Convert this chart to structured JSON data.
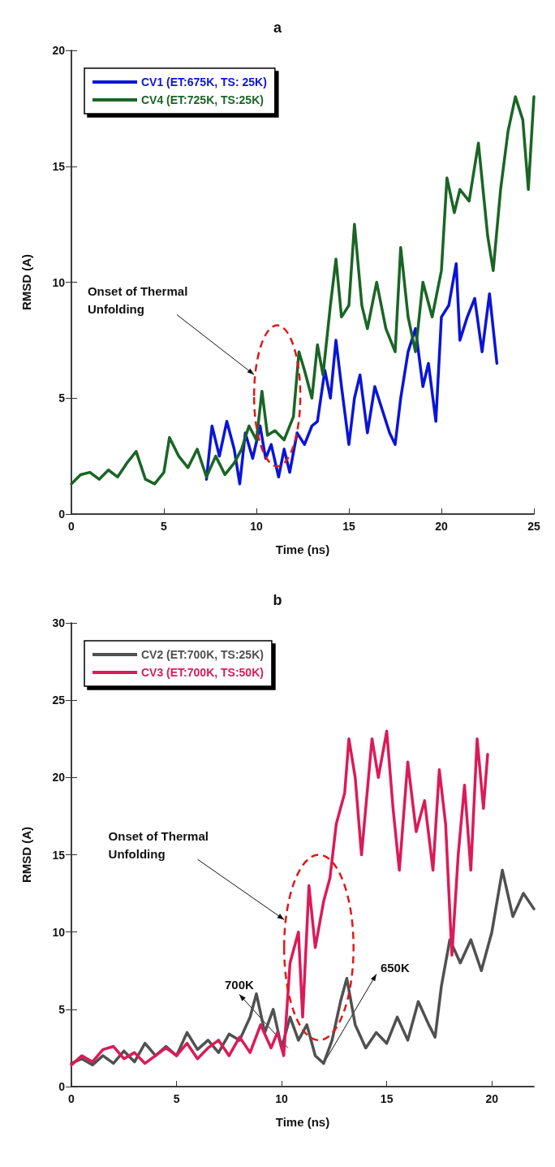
{
  "chart_data": [
    {
      "type": "line",
      "title": "a",
      "xlabel": "Time (ns)",
      "ylabel": "RMSD (A)",
      "xlim": [
        0,
        25
      ],
      "ylim": [
        0,
        20
      ],
      "xticks": [
        0,
        5,
        10,
        15,
        20,
        25
      ],
      "yticks": [
        0,
        5,
        10,
        15,
        20
      ],
      "legend": "top left",
      "grid": false,
      "marker": "none",
      "line_style": "solid",
      "annotations": [
        "Onset of Thermal Unfolding"
      ],
      "series": [
        {
          "name": "CV1 (ET:675K, TS: 25K)",
          "color": "#0a14d8",
          "x": [
            7.3,
            7.6,
            8,
            8.4,
            8.8,
            9.1,
            9.4,
            9.8,
            10.2,
            10.5,
            10.8,
            11.2,
            11.5,
            11.8,
            12.2,
            12.6,
            13,
            13.3,
            13.7,
            14,
            14.3,
            14.6,
            15,
            15.3,
            15.6,
            16,
            16.4,
            16.8,
            17.2,
            17.5,
            17.8,
            18.2,
            18.6,
            19,
            19.3,
            19.7,
            20,
            20.4,
            20.8,
            21,
            21.4,
            21.8,
            22.2,
            22.6,
            23
          ],
          "values": [
            1.5,
            3.8,
            2.5,
            4.0,
            2.8,
            1.3,
            3.5,
            2.4,
            3.8,
            2.4,
            3.0,
            1.6,
            2.8,
            1.8,
            3.5,
            3.0,
            3.8,
            4.0,
            6.2,
            5.0,
            7.5,
            5.5,
            3.0,
            5.0,
            6.0,
            3.5,
            5.5,
            4.5,
            3.5,
            3.0,
            5.0,
            7.0,
            8.0,
            5.5,
            6.5,
            4.0,
            8.5,
            9.0,
            10.8,
            7.5,
            8.5,
            9.3,
            7.0,
            9.5,
            6.5
          ]
        },
        {
          "name": "CV4 (ET:725K, TS:25K)",
          "color": "#1a6525",
          "x": [
            0,
            0.5,
            1,
            1.5,
            2,
            2.5,
            3,
            3.5,
            4,
            4.5,
            5,
            5.3,
            5.8,
            6.3,
            6.8,
            7.3,
            7.8,
            8.3,
            8.8,
            9.2,
            9.6,
            10,
            10.3,
            10.6,
            11,
            11.5,
            12,
            12.3,
            12.6,
            13,
            13.3,
            13.6,
            14,
            14.3,
            14.6,
            15,
            15.3,
            15.7,
            16,
            16.5,
            17,
            17.5,
            17.8,
            18.2,
            18.6,
            19,
            19.5,
            20,
            20.3,
            20.7,
            21,
            21.5,
            22,
            22.5,
            22.8,
            23.2,
            23.6,
            24,
            24.4,
            24.7,
            25
          ],
          "values": [
            1.3,
            1.7,
            1.8,
            1.5,
            1.9,
            1.6,
            2.2,
            2.7,
            1.5,
            1.3,
            1.8,
            3.3,
            2.5,
            2.0,
            2.8,
            1.6,
            2.5,
            1.7,
            2.2,
            2.8,
            3.8,
            3.2,
            5.3,
            3.4,
            3.6,
            3.2,
            4.2,
            7.0,
            6.2,
            5.0,
            7.3,
            6.0,
            9.0,
            11.0,
            8.5,
            9.0,
            12.5,
            9.0,
            8.0,
            10.0,
            8.0,
            7.0,
            11.5,
            8.5,
            7.0,
            10.0,
            8.5,
            10.5,
            14.5,
            13.0,
            14.0,
            13.5,
            16.0,
            12.0,
            10.5,
            14.0,
            16.5,
            18.0,
            17.0,
            14.0,
            18.0
          ]
        }
      ]
    },
    {
      "type": "line",
      "title": "b",
      "xlabel": "Time (ns)",
      "ylabel": "RMSD (A)",
      "xlim": [
        0,
        22
      ],
      "ylim": [
        0,
        30
      ],
      "xticks": [
        0,
        5,
        10,
        15,
        20
      ],
      "yticks": [
        0,
        5,
        10,
        15,
        20,
        25,
        30
      ],
      "legend": "top left",
      "grid": false,
      "marker": "none",
      "line_style": "solid",
      "annotations": [
        "Onset of Thermal Unfolding",
        {
          "text": "700K",
          "x": 10.3,
          "y": 2.5
        },
        {
          "text": "650K",
          "x": 12,
          "y": 1.5
        }
      ],
      "series": [
        {
          "name": "CV2 (ET:700K, TS:25K)",
          "color": "#505050",
          "x": [
            0,
            0.5,
            1,
            1.5,
            2,
            2.5,
            3,
            3.5,
            4,
            4.5,
            5,
            5.5,
            6,
            6.5,
            7,
            7.5,
            8,
            8.5,
            8.8,
            9.2,
            9.6,
            10,
            10.4,
            10.8,
            11.2,
            11.6,
            12,
            12.4,
            12.8,
            13.1,
            13.5,
            14,
            14.5,
            15,
            15.5,
            16,
            16.5,
            17,
            17.3,
            17.6,
            18,
            18.5,
            19,
            19.5,
            20,
            20.5,
            21,
            21.5,
            22
          ],
          "values": [
            1.5,
            1.8,
            1.4,
            2.0,
            1.5,
            2.3,
            1.6,
            2.8,
            2.0,
            2.6,
            2.0,
            3.5,
            2.4,
            3.0,
            2.2,
            3.4,
            3.0,
            4.5,
            6.0,
            3.5,
            5.0,
            2.5,
            4.5,
            3.0,
            4.0,
            2.0,
            1.5,
            3.0,
            5.5,
            7.0,
            4.0,
            2.5,
            3.5,
            2.8,
            4.5,
            3.0,
            5.5,
            4.0,
            3.2,
            6.5,
            9.5,
            8.0,
            9.5,
            7.5,
            10.0,
            14.0,
            11.0,
            12.5,
            11.5
          ]
        },
        {
          "name": "CV3 (ET:700K, TS:50K)",
          "color": "#dc1a58",
          "x": [
            0,
            0.5,
            1,
            1.5,
            2,
            2.5,
            3,
            3.5,
            4,
            4.5,
            5,
            5.5,
            6,
            6.5,
            7,
            7.5,
            8,
            8.5,
            9,
            9.5,
            9.8,
            10.1,
            10.4,
            10.8,
            11,
            11.3,
            11.6,
            12,
            12.3,
            12.6,
            13,
            13.2,
            13.5,
            13.8,
            14,
            14.3,
            14.6,
            15,
            15.3,
            15.6,
            16,
            16.4,
            16.8,
            17.2,
            17.5,
            17.8,
            18.1,
            18.4,
            18.7,
            19,
            19.3,
            19.6,
            19.8
          ],
          "values": [
            1.4,
            2.0,
            1.6,
            2.4,
            2.6,
            1.8,
            2.2,
            1.5,
            2.0,
            2.5,
            2.0,
            2.8,
            1.8,
            2.5,
            3.0,
            2.0,
            3.2,
            2.2,
            4.0,
            2.5,
            3.5,
            2.0,
            8.0,
            10.0,
            4.5,
            13.0,
            9.0,
            12.0,
            13.5,
            17.0,
            19.0,
            22.5,
            20.0,
            15.0,
            18.0,
            22.5,
            20.0,
            23.0,
            18.0,
            14.0,
            21.0,
            16.5,
            18.5,
            14.0,
            20.5,
            17.0,
            8.5,
            15.0,
            19.5,
            14.0,
            22.5,
            18.0,
            21.5
          ]
        }
      ]
    }
  ]
}
